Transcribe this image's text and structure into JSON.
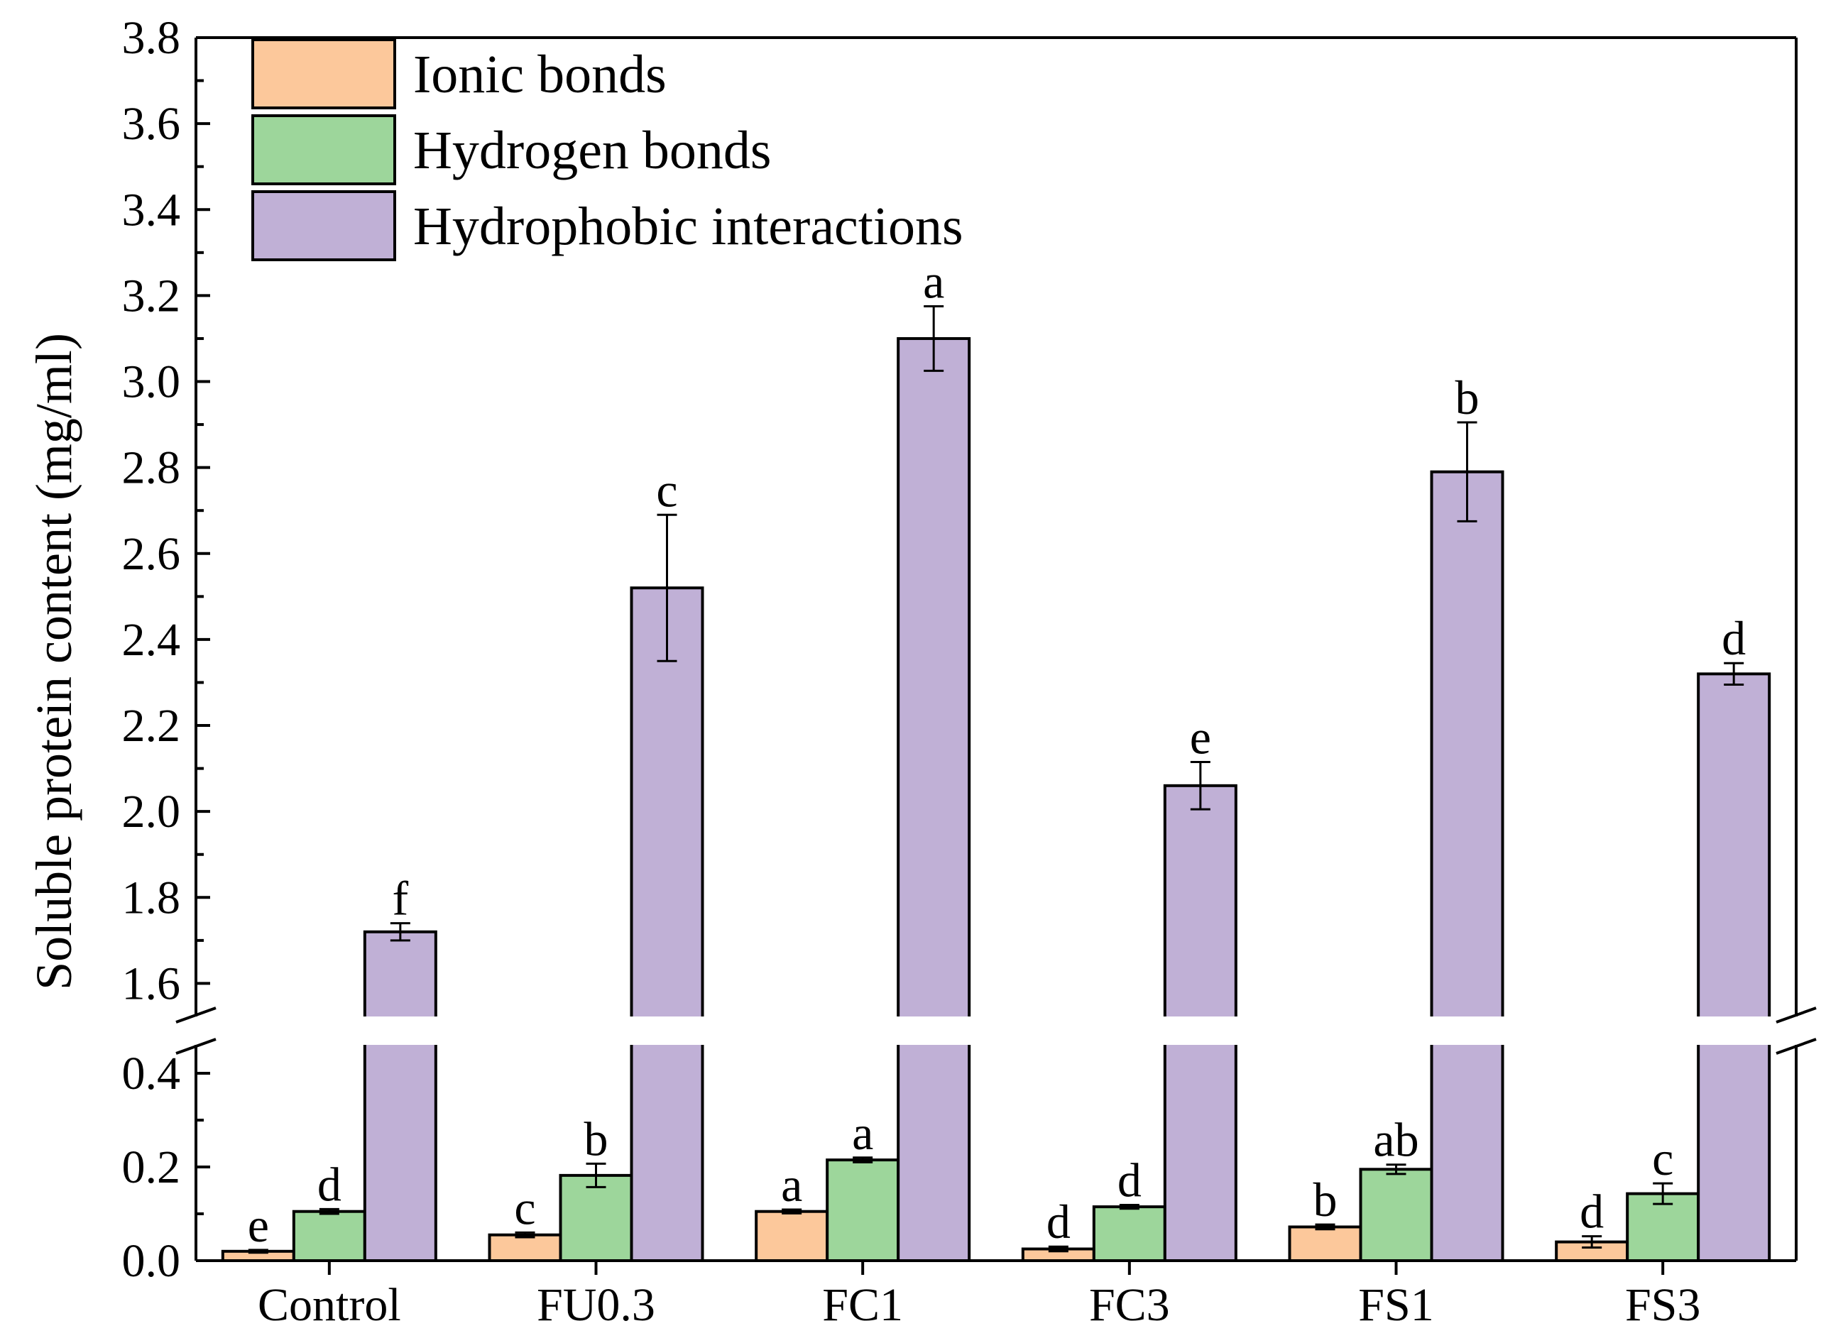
{
  "chart_data": {
    "type": "bar",
    "title": "",
    "xlabel": "",
    "ylabel": "Soluble protein content (mg/ml)",
    "categories": [
      "Control",
      "FU0.3",
      "FC1",
      "FC3",
      "FS1",
      "FS3"
    ],
    "axis_break": {
      "lower": [
        0.0,
        0.5
      ],
      "upper": [
        1.5,
        3.8
      ]
    },
    "yticks_lower": [
      "0.0",
      "0.2",
      "0.4"
    ],
    "yticks_upper": [
      "1.6",
      "1.8",
      "2.0",
      "2.2",
      "2.4",
      "2.6",
      "2.8",
      "3.0",
      "3.2",
      "3.4",
      "3.6",
      "3.8"
    ],
    "legend_position": "top-left",
    "series": [
      {
        "name": "Ionic bonds",
        "color": "#fcc89b",
        "values": [
          0.02,
          0.055,
          0.105,
          0.025,
          0.072,
          0.04
        ],
        "errors": [
          0.003,
          0.005,
          0.004,
          0.005,
          0.005,
          0.012
        ],
        "letters": [
          "e",
          "c",
          "a",
          "d",
          "b",
          "d"
        ]
      },
      {
        "name": "Hydrogen bonds",
        "color": "#9dd69b",
        "values": [
          0.105,
          0.182,
          0.215,
          0.115,
          0.195,
          0.143
        ],
        "errors": [
          0.005,
          0.025,
          0.005,
          0.004,
          0.01,
          0.022
        ],
        "letters": [
          "d",
          "b",
          "a",
          "d",
          "ab",
          "c"
        ]
      },
      {
        "name": "Hydrophobic interactions",
        "color": "#c0b0d6",
        "values": [
          1.72,
          2.52,
          3.1,
          2.06,
          2.79,
          2.32
        ],
        "errors": [
          0.02,
          0.17,
          0.075,
          0.055,
          0.115,
          0.025
        ],
        "letters": [
          "f",
          "c",
          "a",
          "e",
          "b",
          "d"
        ]
      }
    ]
  }
}
